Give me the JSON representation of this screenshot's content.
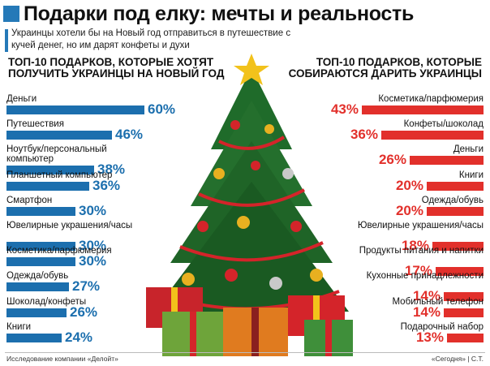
{
  "title": "Подарки под елку: мечты и реальность",
  "subtitle": "Украинцы хотели бы на Новый год отправиться в путешествие с кучей денег, но им дарят конфеты и духи",
  "footer": {
    "source": "Исследование компании «Делойт»",
    "credit": "«Сегодня» | С.Т."
  },
  "colors": {
    "wish": "#1c6fae",
    "real": "#e2302b"
  },
  "chart_data": [
    {
      "type": "bar",
      "title": "ТОП-10 подарков, которые хотят получить украинцы на Новый год",
      "categories": [
        "Деньги",
        "Путешествия",
        "Ноутбук/персональный компьютер",
        "Планшетный компьютер",
        "Смартфон",
        "Ювелирные украшения/часы",
        "Косметика/парфюмерия",
        "Одежда/обувь",
        "Шоколад/конфеты",
        "Книги"
      ],
      "values": [
        60,
        46,
        38,
        36,
        30,
        30,
        30,
        27,
        26,
        24
      ],
      "labels": [
        "60%",
        "46%",
        "38%",
        "36%",
        "30%",
        "30%",
        "30%",
        "27%",
        "26%",
        "24%"
      ],
      "orientation": "horizontal",
      "unit": "%"
    },
    {
      "type": "bar",
      "title": "ТОП-10 подарков, которые собираются дарить украинцы",
      "categories": [
        "Косметика/парфюмерия",
        "Конфеты/шоколад",
        "Деньги",
        "Книги",
        "Одежда/обувь",
        "Ювелирные украшения/часы",
        "Продукты питания и напитки",
        "Кухонные принадлежности",
        "Мобильный телефон",
        "Подарочный набор"
      ],
      "values": [
        43,
        36,
        26,
        20,
        20,
        18,
        17,
        14,
        14,
        13
      ],
      "labels": [
        "43%",
        "36%",
        "26%",
        "20%",
        "20%",
        "18%",
        "17%",
        "14%",
        "14%",
        "13%"
      ],
      "orientation": "horizontal",
      "unit": "%"
    }
  ],
  "illustration": "christmas-tree-with-gifts"
}
